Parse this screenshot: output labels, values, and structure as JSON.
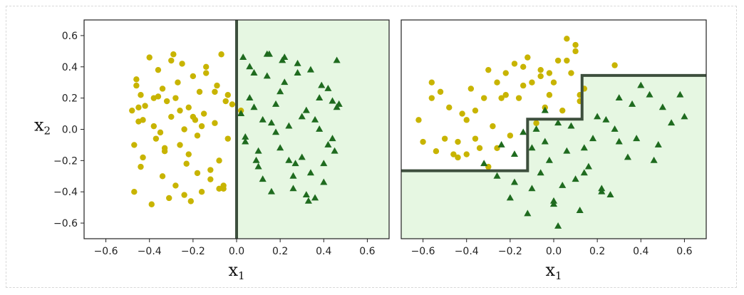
{
  "chart_data": [
    {
      "type": "scatter",
      "xlim": [
        -0.7,
        0.7
      ],
      "ylim": [
        -0.7,
        0.7
      ],
      "xticks": [
        -0.6,
        -0.4,
        -0.2,
        0.0,
        0.2,
        0.4,
        0.6
      ],
      "yticks": [
        0.6,
        0.4,
        0.2,
        0.0,
        -0.2,
        -0.4,
        -0.6
      ],
      "xtick_labels": [
        "−0.6",
        "−0.4",
        "−0.2",
        "0.0",
        "0.2",
        "0.4",
        "0.6"
      ],
      "ytick_labels": [
        "0.6",
        "0.4",
        "0.2",
        "0.0",
        "−0.2",
        "−0.4",
        "−0.6"
      ],
      "xlabel": "x",
      "xlabel_sub": "1",
      "ylabel": "x",
      "ylabel_sub": "2",
      "grid": false,
      "background_color": "#ffffff",
      "region_color": "#e6f7e2",
      "boundary_color": "#3d4f3d",
      "decision_boundary": [
        [
          0.0,
          0.7
        ],
        [
          0.0,
          -0.7
        ]
      ],
      "positive_region": [
        [
          0.0,
          0.7
        ],
        [
          0.7,
          0.7
        ],
        [
          0.7,
          -0.7
        ],
        [
          0.0,
          -0.7
        ]
      ],
      "series": [
        {
          "marker": "circle",
          "color": "#c8b400",
          "x": [
            -0.48,
            -0.47,
            -0.46,
            -0.45,
            -0.44,
            -0.43,
            -0.42,
            -0.4,
            -0.39,
            -0.38,
            -0.37,
            -0.36,
            -0.35,
            -0.34,
            -0.33,
            -0.32,
            -0.31,
            -0.3,
            -0.29,
            -0.28,
            -0.27,
            -0.26,
            -0.25,
            -0.24,
            -0.23,
            -0.22,
            -0.21,
            -0.2,
            -0.19,
            -0.18,
            -0.17,
            -0.16,
            -0.15,
            -0.14,
            -0.12,
            -0.1,
            -0.09,
            -0.08,
            -0.07,
            -0.06,
            -0.05,
            -0.04,
            -0.46,
            -0.44,
            -0.38,
            -0.34,
            -0.3,
            -0.26,
            -0.22,
            -0.18,
            -0.14,
            -0.1,
            -0.06,
            -0.02,
            -0.47,
            -0.43,
            -0.36,
            -0.28,
            -0.24,
            -0.16,
            -0.12,
            -0.04,
            0.02,
            -0.45,
            -0.33,
            -0.2,
            -0.08
          ],
          "y": [
            0.12,
            -0.4,
            0.28,
            0.05,
            0.22,
            -0.18,
            0.15,
            0.46,
            -0.48,
            0.2,
            -0.06,
            0.38,
            -0.02,
            0.26,
            -0.14,
            0.18,
            -0.44,
            0.08,
            0.48,
            -0.36,
            0.3,
            -0.1,
            0.42,
            0.0,
            -0.22,
            0.14,
            -0.46,
            0.34,
            0.06,
            -0.28,
            0.24,
            -0.4,
            0.1,
            0.4,
            -0.32,
            0.04,
            0.28,
            -0.2,
            0.48,
            -0.36,
            0.18,
            -0.06,
            0.32,
            -0.24,
            0.02,
            -0.3,
            0.44,
            0.12,
            -0.16,
            -0.04,
            0.36,
            0.24,
            -0.38,
            0.16,
            -0.1,
            0.06,
            0.21,
            0.2,
            -0.42,
            0.02,
            -0.26,
            0.22,
            0.12,
            0.14,
            -0.12,
            0.08,
            -0.38
          ]
        },
        {
          "marker": "triangle",
          "color": "#1f6b1f",
          "x": [
            0.02,
            0.04,
            0.06,
            0.08,
            0.1,
            0.12,
            0.14,
            0.16,
            0.18,
            0.2,
            0.22,
            0.24,
            0.26,
            0.28,
            0.3,
            0.32,
            0.34,
            0.36,
            0.38,
            0.4,
            0.42,
            0.44,
            0.46,
            0.06,
            0.1,
            0.14,
            0.18,
            0.22,
            0.26,
            0.3,
            0.34,
            0.38,
            0.42,
            0.46,
            0.04,
            0.08,
            0.12,
            0.16,
            0.2,
            0.24,
            0.28,
            0.32,
            0.36,
            0.4,
            0.44,
            0.03,
            0.15,
            0.27,
            0.39,
            0.47,
            0.09,
            0.21,
            0.33,
            0.45
          ],
          "y": [
            0.1,
            -0.05,
            0.2,
            0.36,
            -0.24,
            0.06,
            0.48,
            -0.4,
            0.16,
            -0.12,
            0.3,
            0.02,
            -0.3,
            0.42,
            -0.18,
            0.12,
            0.38,
            -0.44,
            0.0,
            -0.22,
            0.26,
            -0.06,
            0.44,
            0.4,
            -0.14,
            0.34,
            -0.02,
            0.46,
            -0.38,
            0.08,
            -0.28,
            0.2,
            -0.1,
            0.14,
            -0.08,
            0.14,
            -0.32,
            0.04,
            0.24,
            -0.2,
            0.36,
            -0.42,
            0.06,
            -0.34,
            0.18,
            0.46,
            0.48,
            -0.22,
            0.28,
            0.16,
            -0.2,
            0.44,
            -0.46,
            -0.14
          ]
        }
      ]
    },
    {
      "type": "scatter",
      "xlim": [
        -0.7,
        0.7
      ],
      "ylim": [
        -0.7,
        0.7
      ],
      "xticks": [
        -0.6,
        -0.4,
        -0.2,
        0.0,
        0.2,
        0.4,
        0.6
      ],
      "yticks": [],
      "xtick_labels": [
        "−0.6",
        "−0.4",
        "−0.2",
        "0.0",
        "0.2",
        "0.4",
        "0.6"
      ],
      "ytick_labels": [],
      "xlabel": "x",
      "xlabel_sub": "1",
      "ylabel": "",
      "ylabel_sub": "",
      "grid": false,
      "background_color": "#ffffff",
      "region_color": "#e6f7e2",
      "boundary_color": "#3d4f3d",
      "decision_boundary": [
        [
          -0.7,
          -0.265
        ],
        [
          -0.12,
          -0.265
        ],
        [
          -0.12,
          0.065
        ],
        [
          0.13,
          0.065
        ],
        [
          0.13,
          0.345
        ],
        [
          0.7,
          0.345
        ]
      ],
      "positive_region": [
        [
          -0.7,
          -0.265
        ],
        [
          -0.12,
          -0.265
        ],
        [
          -0.12,
          0.065
        ],
        [
          0.13,
          0.065
        ],
        [
          0.13,
          0.345
        ],
        [
          0.7,
          0.345
        ],
        [
          0.7,
          -0.7
        ],
        [
          -0.7,
          -0.7
        ]
      ],
      "series": [
        {
          "marker": "circle",
          "color": "#c8b400",
          "x": [
            -0.62,
            -0.6,
            -0.56,
            -0.54,
            -0.52,
            -0.5,
            -0.48,
            -0.46,
            -0.44,
            -0.42,
            -0.4,
            -0.38,
            -0.36,
            -0.34,
            -0.32,
            -0.3,
            -0.3,
            -0.28,
            -0.26,
            -0.24,
            -0.22,
            -0.2,
            -0.18,
            -0.16,
            -0.14,
            -0.12,
            -0.1,
            -0.08,
            -0.06,
            -0.04,
            -0.02,
            0.0,
            0.02,
            0.04,
            0.06,
            0.08,
            0.1,
            0.12,
            0.14,
            -0.56,
            -0.44,
            -0.36,
            -0.26,
            -0.14,
            -0.06,
            0.06,
            0.1,
            0.28,
            -0.4,
            -0.22,
            -0.02,
            0.12
          ],
          "y": [
            0.06,
            -0.08,
            0.2,
            -0.14,
            0.24,
            -0.06,
            0.14,
            -0.16,
            -0.08,
            0.1,
            -0.16,
            0.26,
            -0.06,
            -0.12,
            0.2,
            0.38,
            -0.24,
            0.02,
            0.3,
            0.2,
            0.36,
            -0.04,
            0.42,
            0.2,
            0.28,
            0.46,
            0.3,
            0.04,
            0.38,
            0.14,
            0.22,
            0.3,
            0.44,
            0.12,
            0.58,
            0.36,
            0.5,
            0.18,
            0.26,
            0.3,
            -0.18,
            0.12,
            -0.12,
            0.4,
            0.34,
            0.44,
            0.54,
            0.41,
            0.06,
            0.22,
            0.36,
            0.22
          ]
        },
        {
          "marker": "triangle",
          "color": "#1f6b1f",
          "x": [
            -0.32,
            -0.26,
            -0.24,
            -0.2,
            -0.18,
            -0.14,
            -0.12,
            -0.1,
            -0.08,
            -0.06,
            -0.04,
            -0.02,
            0.0,
            0.02,
            0.04,
            0.06,
            0.08,
            0.1,
            0.12,
            0.14,
            0.16,
            0.18,
            0.2,
            0.22,
            0.24,
            0.26,
            0.28,
            0.3,
            0.34,
            0.36,
            0.4,
            0.44,
            0.48,
            0.5,
            0.54,
            0.58,
            0.6,
            0.38,
            0.02,
            0.0,
            -0.04,
            -0.18,
            -0.1,
            0.14,
            0.3,
            0.46,
            0.22
          ],
          "y": [
            -0.22,
            -0.3,
            -0.1,
            -0.44,
            -0.34,
            -0.02,
            -0.54,
            -0.12,
            0.0,
            -0.28,
            -0.08,
            -0.2,
            -0.48,
            0.04,
            -0.36,
            -0.14,
            0.02,
            -0.32,
            -0.52,
            -0.12,
            -0.24,
            -0.06,
            0.08,
            -0.38,
            0.06,
            -0.42,
            0.0,
            0.2,
            -0.18,
            0.16,
            0.28,
            0.22,
            -0.1,
            0.14,
            0.04,
            0.22,
            0.08,
            -0.06,
            -0.62,
            -0.46,
            0.12,
            -0.16,
            -0.38,
            -0.28,
            -0.08,
            -0.2,
            -0.4
          ]
        }
      ]
    }
  ]
}
